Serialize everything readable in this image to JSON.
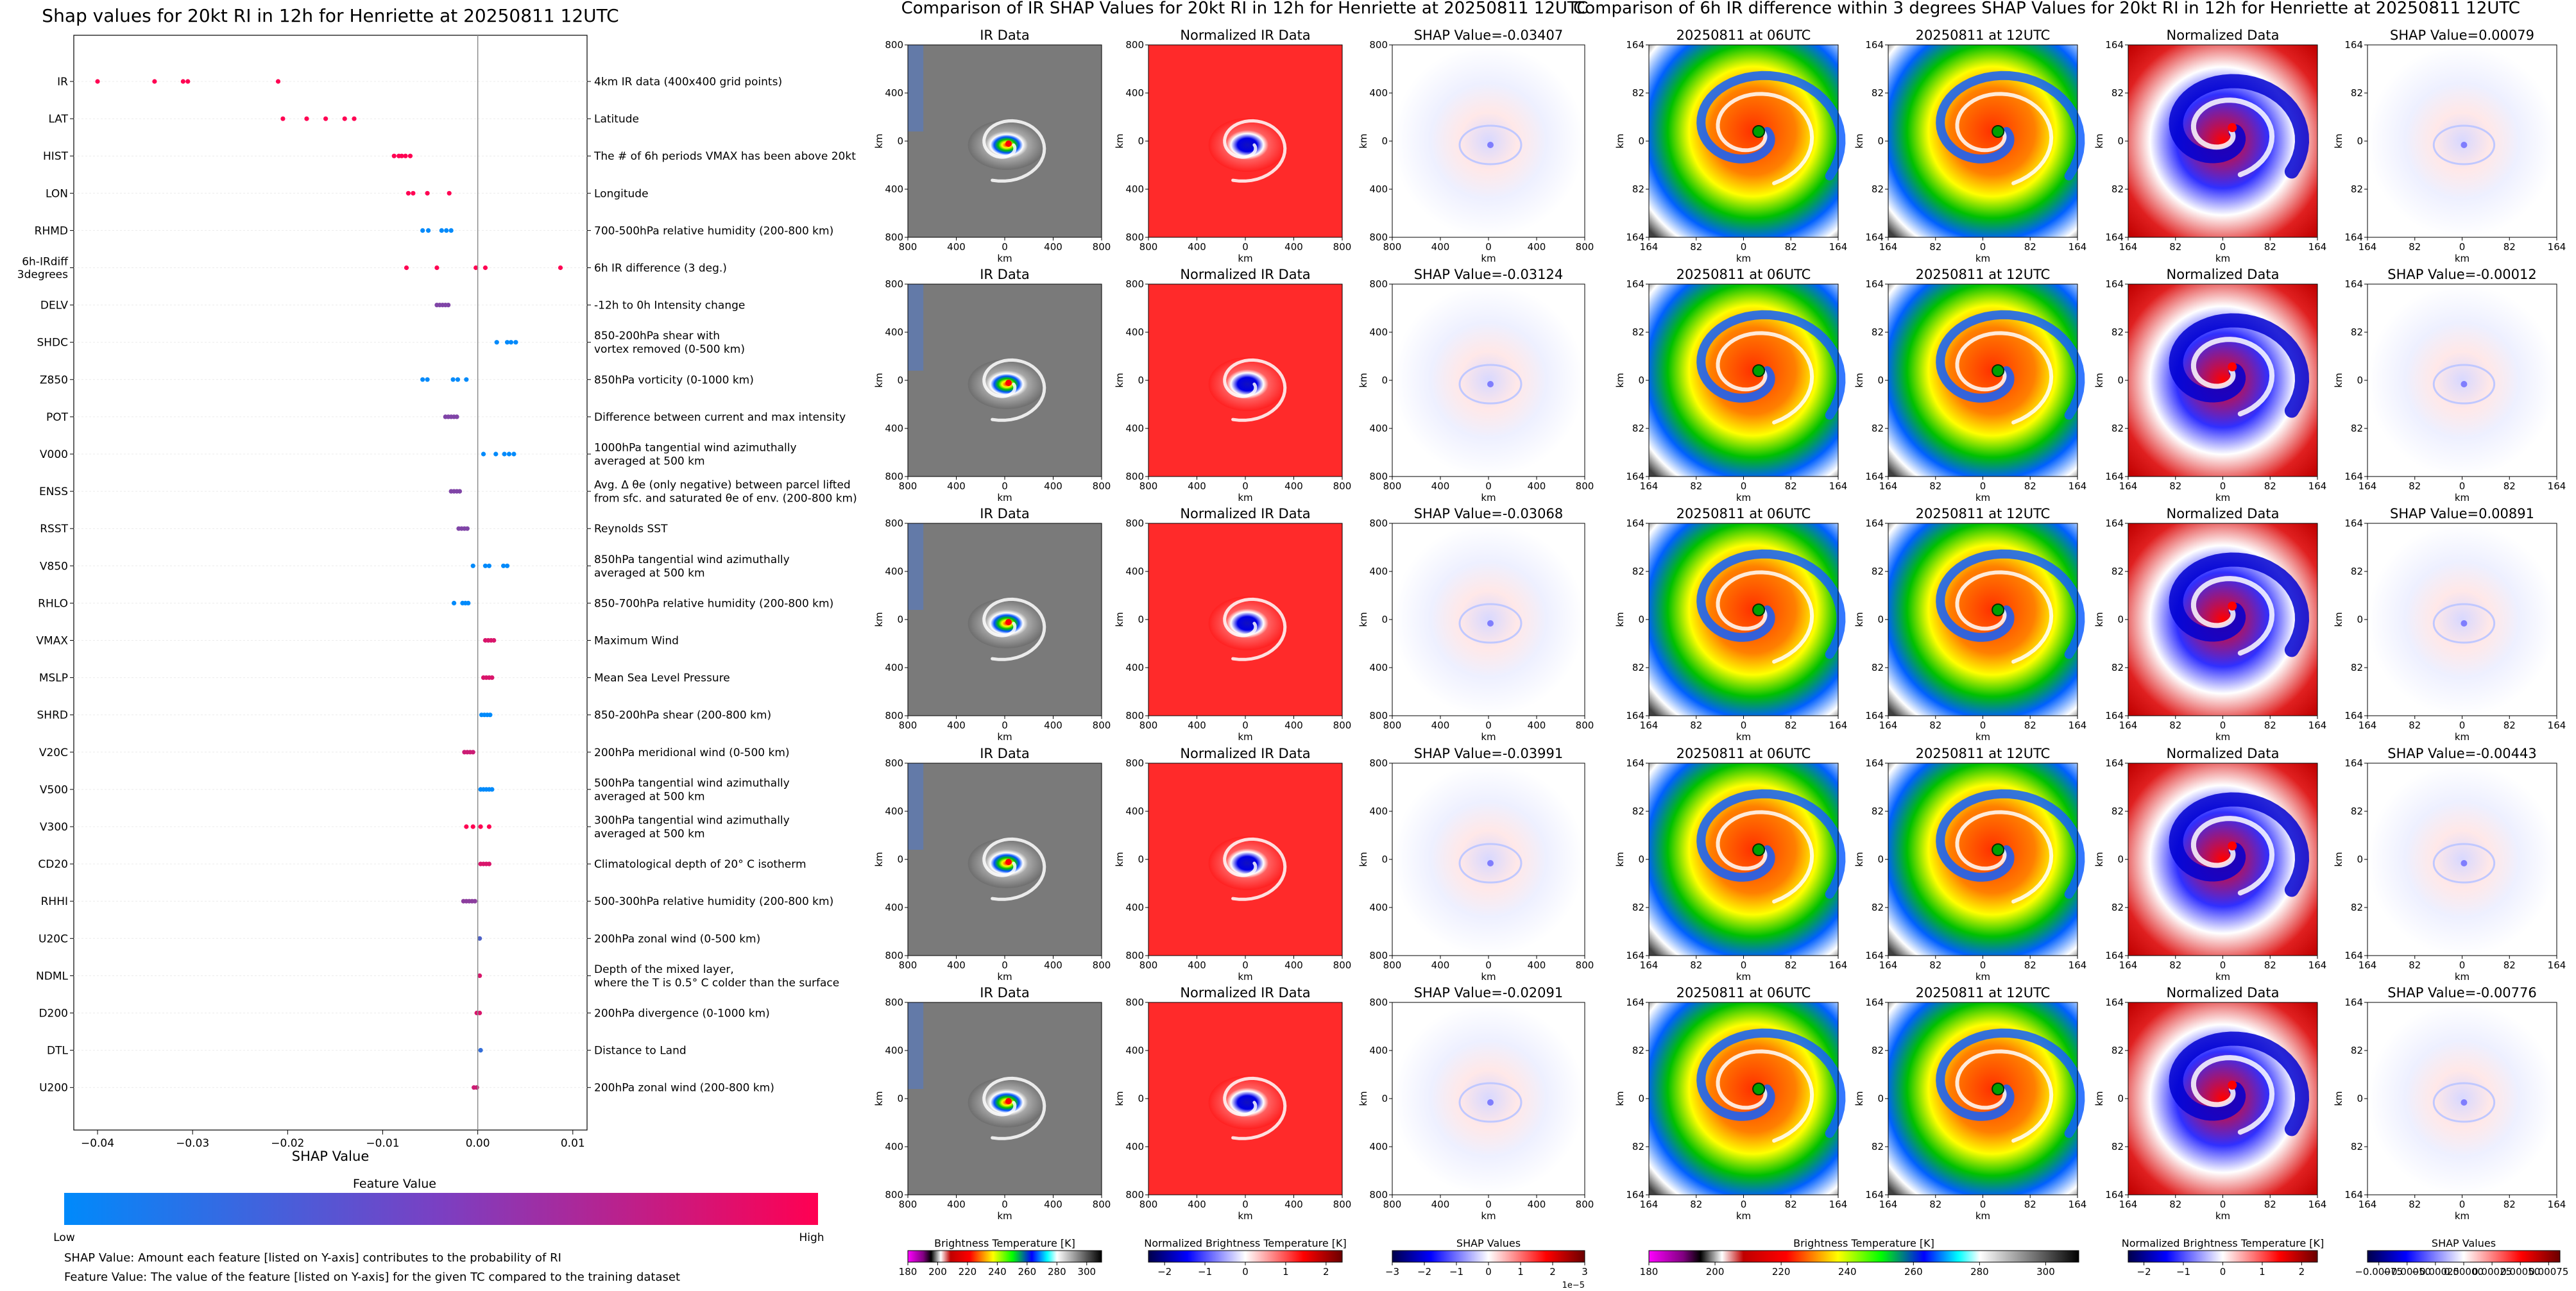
{
  "chart_data": [
    {
      "type": "scatter",
      "title": "Shap values for 20kt RI in 12h for Henriette at 20250811 12UTC",
      "xlabel": "SHAP Value",
      "xlim": [
        -0.0425,
        0.0115
      ],
      "xticks": [
        -0.04,
        -0.03,
        -0.02,
        -0.01,
        0.0,
        0.01
      ],
      "xtick_labels": [
        "−0.04",
        "−0.03",
        "−0.02",
        "−0.01",
        "0.00",
        "0.01"
      ],
      "grid": false,
      "colorbar": {
        "title": "Feature Value",
        "low_label": "Low",
        "high_label": "High",
        "low_color": "#008afb",
        "high_color": "#ff0052"
      },
      "footnotes": [
        "SHAP Value: Amount each feature [listed on Y-axis] contributes to the probability of RI",
        "Feature Value: The value of the feature [listed on Y-axis] for the given TC compared to the training dataset"
      ],
      "features": [
        {
          "name": "IR",
          "desc": "4km IR data (400x400 grid points)",
          "points": [
            [
              -0.04,
              1
            ],
            [
              -0.034,
              1
            ],
            [
              -0.031,
              1
            ],
            [
              -0.0305,
              1
            ],
            [
              -0.021,
              1
            ]
          ]
        },
        {
          "name": "LAT",
          "desc": "Latitude",
          "points": [
            [
              -0.0205,
              1
            ],
            [
              -0.018,
              1
            ],
            [
              -0.016,
              1
            ],
            [
              -0.014,
              1
            ],
            [
              -0.013,
              1
            ]
          ]
        },
        {
          "name": "HIST",
          "desc": "The # of 6h periods VMAX has been above 20kt",
          "points": [
            [
              -0.0088,
              1
            ],
            [
              -0.0083,
              1
            ],
            [
              -0.008,
              1
            ],
            [
              -0.0076,
              1
            ],
            [
              -0.0071,
              1
            ]
          ]
        },
        {
          "name": "LON",
          "desc": "Longitude",
          "points": [
            [
              -0.0073,
              1
            ],
            [
              -0.0068,
              1
            ],
            [
              -0.0053,
              1
            ],
            [
              -0.003,
              1
            ]
          ]
        },
        {
          "name": "RHMD",
          "desc": "700-500hPa relative humidity (200-800 km)",
          "points": [
            [
              -0.0058,
              0
            ],
            [
              -0.0052,
              0
            ],
            [
              -0.0038,
              0
            ],
            [
              -0.0033,
              0
            ],
            [
              -0.0028,
              0
            ]
          ]
        },
        {
          "name": "6h-IRdiff\n3degrees",
          "desc": "6h IR difference (3 deg.)",
          "points": [
            [
              -0.0075,
              1
            ],
            [
              -0.0043,
              1
            ],
            [
              -0.0002,
              1
            ],
            [
              0.0008,
              1
            ],
            [
              0.0087,
              1
            ]
          ]
        },
        {
          "name": "DELV",
          "desc": "-12h to 0h Intensity change",
          "points": [
            [
              -0.0043,
              0.5
            ],
            [
              -0.004,
              0.5
            ],
            [
              -0.0037,
              0.5
            ],
            [
              -0.0034,
              0.5
            ],
            [
              -0.0031,
              0.5
            ]
          ]
        },
        {
          "name": "SHDC",
          "desc": "850-200hPa shear with\nvortex removed (0-500 km)",
          "points": [
            [
              0.002,
              0
            ],
            [
              0.0031,
              0
            ],
            [
              0.0035,
              0
            ],
            [
              0.004,
              0
            ]
          ]
        },
        {
          "name": "Z850",
          "desc": "850hPa vorticity (0-1000 km)",
          "points": [
            [
              -0.0058,
              0
            ],
            [
              -0.0053,
              0
            ],
            [
              -0.0026,
              0
            ],
            [
              -0.0021,
              0
            ],
            [
              -0.0012,
              0
            ]
          ]
        },
        {
          "name": "POT",
          "desc": "Difference between current and max intensity",
          "points": [
            [
              -0.0034,
              0.5
            ],
            [
              -0.0031,
              0.5
            ],
            [
              -0.0028,
              0.5
            ],
            [
              -0.0025,
              0.5
            ],
            [
              -0.0022,
              0.5
            ]
          ]
        },
        {
          "name": "V000",
          "desc": "1000hPa tangential wind azimuthally\naveraged at 500 km",
          "points": [
            [
              0.0006,
              0
            ],
            [
              0.0019,
              0
            ],
            [
              0.0028,
              0
            ],
            [
              0.0033,
              0
            ],
            [
              0.0038,
              0
            ]
          ]
        },
        {
          "name": "ENSS",
          "desc": "Avg. Δ θe (only negative) between parcel lifted\nfrom sfc. and saturated θe of env. (200-800 km)",
          "points": [
            [
              -0.0028,
              0.5
            ],
            [
              -0.0025,
              0.5
            ],
            [
              -0.0022,
              0.5
            ],
            [
              -0.0019,
              0.5
            ]
          ]
        },
        {
          "name": "RSST",
          "desc": "Reynolds SST",
          "points": [
            [
              -0.002,
              0.5
            ],
            [
              -0.0017,
              0.5
            ],
            [
              -0.0014,
              0.5
            ],
            [
              -0.0011,
              0.5
            ]
          ]
        },
        {
          "name": "V850",
          "desc": "850hPa tangential wind azimuthally\naveraged at 500 km",
          "points": [
            [
              -0.0005,
              0
            ],
            [
              0.0008,
              0
            ],
            [
              0.0012,
              0
            ],
            [
              0.0027,
              0
            ],
            [
              0.0031,
              0
            ]
          ]
        },
        {
          "name": "RHLO",
          "desc": "850-700hPa relative humidity (200-800 km)",
          "points": [
            [
              -0.0025,
              0
            ],
            [
              -0.0016,
              0
            ],
            [
              -0.0013,
              0
            ],
            [
              -0.001,
              0
            ]
          ]
        },
        {
          "name": "VMAX",
          "desc": "Maximum Wind",
          "points": [
            [
              0.0008,
              0.85
            ],
            [
              0.0011,
              0.85
            ],
            [
              0.0014,
              0.85
            ],
            [
              0.0017,
              0.85
            ]
          ]
        },
        {
          "name": "MSLP",
          "desc": "Mean Sea Level Pressure",
          "points": [
            [
              0.0006,
              0.85
            ],
            [
              0.0009,
              0.85
            ],
            [
              0.0012,
              0.85
            ],
            [
              0.0015,
              0.85
            ]
          ]
        },
        {
          "name": "SHRD",
          "desc": "850-200hPa shear (200-800 km)",
          "points": [
            [
              0.0004,
              0
            ],
            [
              0.0007,
              0
            ],
            [
              0.001,
              0
            ],
            [
              0.0013,
              0
            ]
          ]
        },
        {
          "name": "V20C",
          "desc": "200hPa meridional wind (0-500 km)",
          "points": [
            [
              -0.0014,
              0.8
            ],
            [
              -0.0011,
              0.8
            ],
            [
              -0.0008,
              0.8
            ],
            [
              -0.0005,
              0.8
            ]
          ]
        },
        {
          "name": "V500",
          "desc": "500hPa tangential wind azimuthally\naveraged at 500 km",
          "points": [
            [
              0.0003,
              0
            ],
            [
              0.0006,
              0
            ],
            [
              0.0009,
              0
            ],
            [
              0.0012,
              0
            ],
            [
              0.0015,
              0
            ]
          ]
        },
        {
          "name": "V300",
          "desc": "300hPa tangential wind azimuthally\naveraged at 500 km",
          "points": [
            [
              -0.0012,
              1
            ],
            [
              -0.0005,
              1
            ],
            [
              0.0003,
              1
            ],
            [
              0.0012,
              1
            ]
          ]
        },
        {
          "name": "CD20",
          "desc": "Climatological depth of 20° C isotherm",
          "points": [
            [
              0.0003,
              0.85
            ],
            [
              0.0006,
              0.85
            ],
            [
              0.0009,
              0.85
            ],
            [
              0.0012,
              0.85
            ]
          ]
        },
        {
          "name": "RHHI",
          "desc": "500-300hPa relative humidity (200-800 km)",
          "points": [
            [
              -0.0015,
              0.55
            ],
            [
              -0.0012,
              0.55
            ],
            [
              -0.0009,
              0.55
            ],
            [
              -0.0006,
              0.55
            ],
            [
              -0.0003,
              0.55
            ]
          ]
        },
        {
          "name": "U20C",
          "desc": "200hPa zonal wind (0-500 km)",
          "points": [
            [
              0.0002,
              0.3
            ]
          ]
        },
        {
          "name": "NDML",
          "desc": "Depth of the mixed layer,\nwhere the T is 0.5° C colder than the surface",
          "points": [
            [
              0.0002,
              0.85
            ]
          ]
        },
        {
          "name": "D200",
          "desc": "200hPa divergence (0-1000 km)",
          "points": [
            [
              -0.0001,
              0.85
            ],
            [
              0.0002,
              0.85
            ]
          ]
        },
        {
          "name": "DTL",
          "desc": "Distance to Land",
          "points": [
            [
              0.0003,
              0.2
            ]
          ]
        },
        {
          "name": "U200",
          "desc": "200hPa zonal wind (200-800 km)",
          "points": [
            [
              -0.0004,
              0.8
            ],
            [
              -0.0001,
              0.8
            ]
          ]
        }
      ]
    },
    {
      "type": "heatmap",
      "title": "Comparison of IR SHAP Values for 20kt RI in 12h for Henriette at 20250811 12UTC",
      "column_titles": [
        "IR Data",
        "Normalized IR Data"
      ],
      "shap_titles": [
        "SHAP Value=-0.03407",
        "SHAP Value=-0.03124",
        "SHAP Value=-0.03068",
        "SHAP Value=-0.03991",
        "SHAP Value=-0.02091"
      ],
      "xlabel": "km",
      "ylabel": "km",
      "xticks": [
        "800",
        "400",
        "0",
        "400",
        "800"
      ],
      "yticks": [
        "800",
        "400",
        "0",
        "400",
        "800"
      ],
      "colorbars": [
        {
          "label": "Brightness Temperature [K]",
          "ticks": [
            "180",
            "200",
            "220",
            "240",
            "260",
            "280",
            "300"
          ],
          "range": [
            180,
            310
          ]
        },
        {
          "label": "Normalized Brightness Temperature [K]",
          "ticks": [
            "−2",
            "−1",
            "0",
            "1",
            "2"
          ],
          "range": [
            -2.4,
            2.4
          ]
        },
        {
          "label": "SHAP Values",
          "ticks": [
            "−3",
            "−2",
            "−1",
            "0",
            "1",
            "2",
            "3"
          ],
          "range": [
            -3,
            3
          ],
          "offset": "1e−5"
        }
      ]
    },
    {
      "type": "heatmap",
      "title": "Comparison of 6h IR difference within 3 degrees SHAP Values for 20kt RI in 12h for Henriette at 20250811 12UTC",
      "column_titles": [
        "20250811 at 06UTC",
        "20250811 at 12UTC",
        "Normalized Data"
      ],
      "shap_titles": [
        "SHAP Value=0.00079",
        "SHAP Value=-0.00012",
        "SHAP Value=0.00891",
        "SHAP Value=-0.00443",
        "SHAP Value=-0.00776"
      ],
      "xlabel": "km",
      "ylabel": "km",
      "xticks": [
        "164",
        "82",
        "0",
        "82",
        "164"
      ],
      "yticks": [
        "164",
        "82",
        "0",
        "82",
        "164"
      ],
      "colorbars": [
        {
          "label": "Brightness Temperature [K]",
          "ticks": [
            "180",
            "200",
            "220",
            "240",
            "260",
            "280",
            "300"
          ],
          "range": [
            180,
            310
          ]
        },
        {
          "label": "Normalized Brightness Temperature [K]",
          "ticks": [
            "−2",
            "−1",
            "0",
            "1",
            "2"
          ],
          "range": [
            -2.4,
            2.4
          ]
        },
        {
          "label": "SHAP Values",
          "ticks": [
            "−0.00075",
            "−0.00050",
            "−0.00025",
            "0.00000",
            "0.00025",
            "0.00050",
            "0.00075"
          ],
          "range": [
            -0.00085,
            0.00085
          ]
        }
      ]
    }
  ]
}
